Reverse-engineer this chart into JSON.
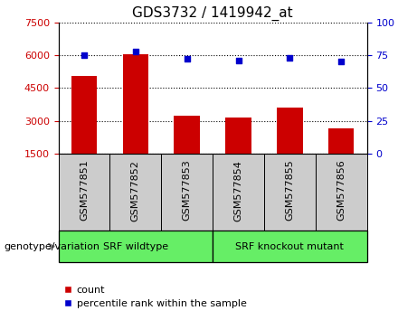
{
  "title": "GDS3732 / 1419942_at",
  "categories": [
    "GSM577851",
    "GSM577852",
    "GSM577853",
    "GSM577854",
    "GSM577855",
    "GSM577856"
  ],
  "bar_tops": [
    5050,
    6050,
    3250,
    3150,
    3600,
    2650
  ],
  "percentile_values": [
    75,
    78,
    72,
    71,
    73,
    70
  ],
  "bar_bottom": 1500,
  "ylim_left": [
    1500,
    7500
  ],
  "ylim_right": [
    0,
    100
  ],
  "yticks_left": [
    1500,
    3000,
    4500,
    6000,
    7500
  ],
  "yticks_right": [
    0,
    25,
    50,
    75,
    100
  ],
  "bar_color": "#cc0000",
  "dot_color": "#0000cc",
  "bar_width": 0.5,
  "groups": [
    {
      "label": "SRF wildtype",
      "indices": [
        0,
        1,
        2
      ],
      "color": "#66ee66"
    },
    {
      "label": "SRF knockout mutant",
      "indices": [
        3,
        4,
        5
      ],
      "color": "#66ee66"
    }
  ],
  "genotype_label": "genotype/variation",
  "legend_count": "count",
  "legend_percentile": "percentile rank within the sample",
  "left_tick_color": "#cc0000",
  "right_tick_color": "#0000cc",
  "xlabel_area_color": "#cccccc",
  "title_fontsize": 11,
  "tick_fontsize": 8,
  "label_fontsize": 8,
  "group_fontsize": 8,
  "legend_fontsize": 8
}
